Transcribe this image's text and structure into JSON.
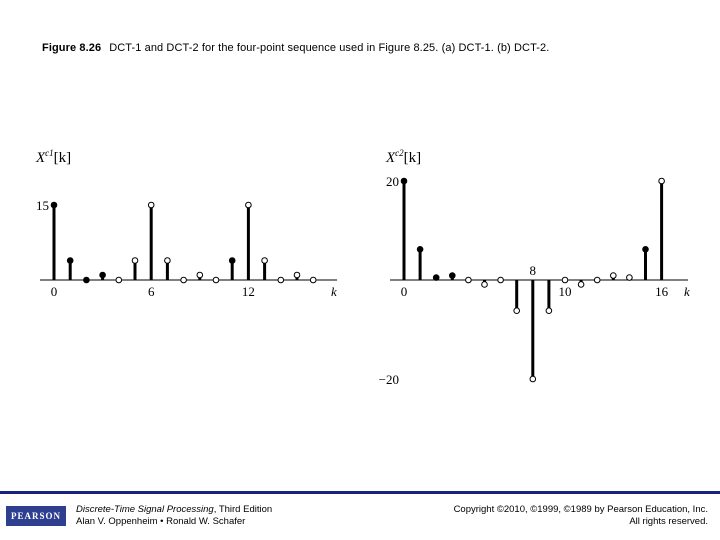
{
  "caption": {
    "label": "Figure 8.26",
    "text": "DCT-1 and DCT-2 for the four-point sequence used in Figure 8.25. (a) DCT-1. (b) DCT-2."
  },
  "chart_data": [
    {
      "type": "stem",
      "ylabel_base": "X",
      "ylabel_sup": "c1",
      "ylabel_arg": "[k]",
      "xlabel": "k",
      "x_ticks": [
        "0",
        "6",
        "12"
      ],
      "y_ticks": [
        "15"
      ],
      "x": [
        0,
        1,
        2,
        3,
        4,
        5,
        6,
        7,
        8,
        9,
        10,
        11,
        12,
        13,
        14,
        15,
        16
      ],
      "values": [
        15,
        3.9,
        0,
        1,
        0,
        3.9,
        15,
        3.9,
        0,
        1,
        0,
        3.9,
        15,
        3.9,
        0,
        1,
        0
      ],
      "filled": [
        true,
        true,
        true,
        true,
        false,
        false,
        false,
        false,
        false,
        false,
        false,
        true,
        false,
        false,
        false,
        false,
        false
      ],
      "ylim": [
        -22,
        22
      ]
    },
    {
      "type": "stem",
      "ylabel_base": "X",
      "ylabel_sup": "c2",
      "ylabel_arg": "[k]",
      "xlabel": "k",
      "x_ticks": [
        "0",
        "8",
        "10",
        "16"
      ],
      "y_ticks": [
        "20",
        "-20"
      ],
      "x": [
        0,
        1,
        2,
        3,
        4,
        5,
        6,
        7,
        8,
        9,
        10,
        11,
        12,
        13,
        14,
        15,
        16
      ],
      "values": [
        20,
        6.2,
        0.5,
        0.9,
        0,
        -0.9,
        0,
        -6.2,
        -20,
        -6.2,
        0,
        -0.9,
        0,
        0.9,
        0.5,
        6.2,
        20
      ],
      "filled": [
        true,
        true,
        true,
        true,
        false,
        false,
        false,
        false,
        false,
        false,
        false,
        false,
        false,
        false,
        false,
        true,
        false
      ],
      "ylim": [
        -22,
        22
      ]
    }
  ],
  "footer": {
    "logo": "PEARSON",
    "book_title": "Discrete-Time Signal Processing",
    "book_edition": ", Third Edition",
    "authors": "Alan V. Oppenheim • Ronald W. Schafer",
    "copyright": "Copyright ©2010, ©1999, ©1989 by Pearson Education, Inc.",
    "rights": "All rights reserved."
  }
}
